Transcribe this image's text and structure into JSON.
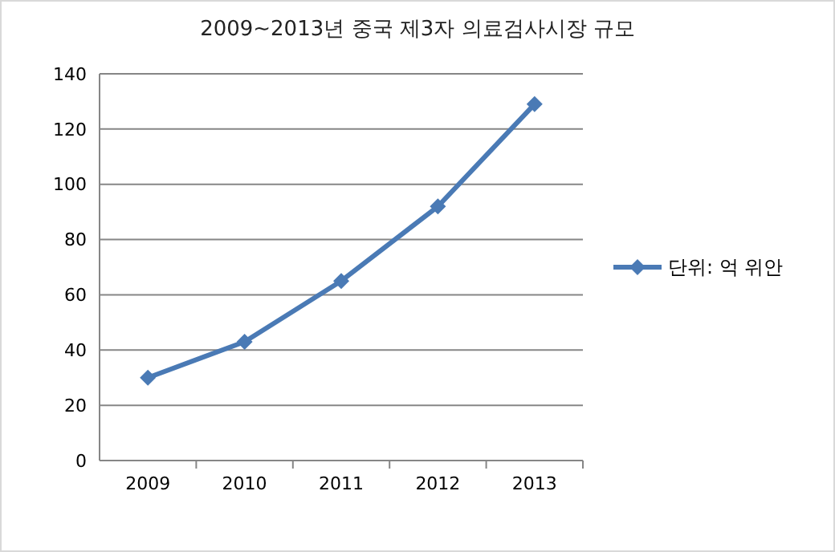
{
  "chart_data": {
    "type": "line",
    "title": "2009~2013년 중국 제3자 의료검사시장 규모",
    "categories": [
      "2009",
      "2010",
      "2011",
      "2012",
      "2013"
    ],
    "series": [
      {
        "name": "단위: 억 위안",
        "color": "#4a7ab5",
        "values": [
          30,
          43,
          65,
          92,
          129
        ]
      }
    ],
    "ylim": [
      0,
      140
    ],
    "yticks": [
      0,
      20,
      40,
      60,
      80,
      100,
      120,
      140
    ],
    "grid": "y",
    "legend": "right",
    "marker": "diamond",
    "line_style": "solid"
  }
}
